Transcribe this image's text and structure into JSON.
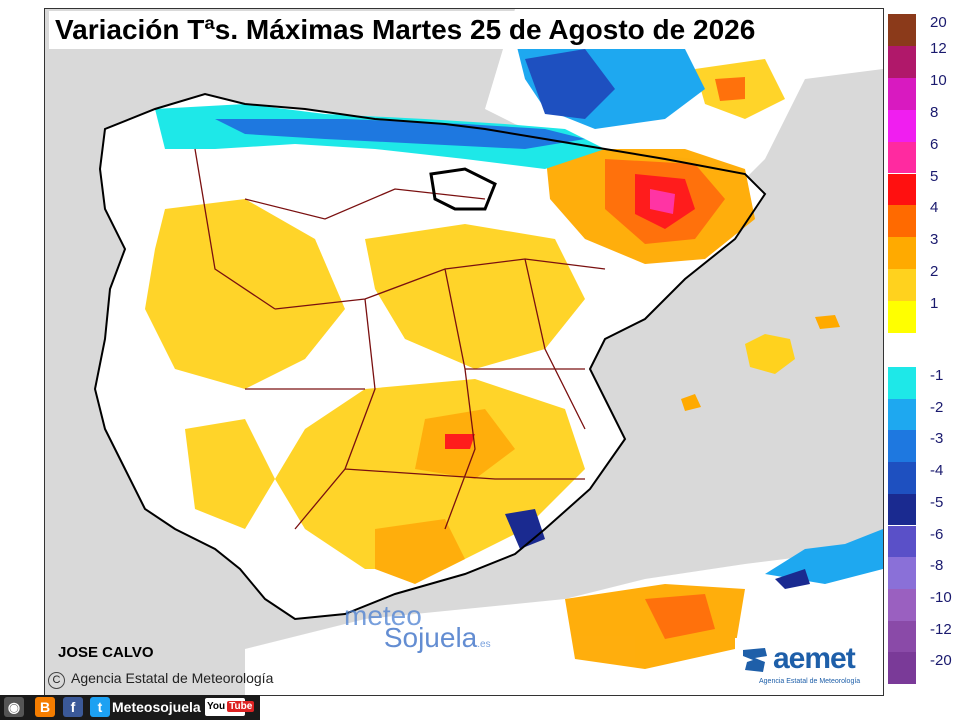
{
  "title": "Variación Tªs. Máximas Martes 25 de Agosto de 2026",
  "author": "JOSE CALVO",
  "copyright_text": "Agencia Estatal de Meteorología",
  "copyright_symbol": "C",
  "watermark": {
    "part1": "meteo",
    "part2": "Sojuela",
    "part3": ".es"
  },
  "aemet": {
    "name": "aemet",
    "sub": "Agencia Estatal de Meteorología"
  },
  "social": {
    "handle": "Meteosojuela",
    "youtube": "You",
    "youtube_red": "Tube",
    "icons": [
      "camera-icon",
      "blogger-icon",
      "facebook-icon",
      "twitter-icon",
      "youtube-icon"
    ]
  },
  "legend": {
    "positive": [
      {
        "label": "20",
        "color": "#8b3a1a"
      },
      {
        "label": "12",
        "color": "#b0186a"
      },
      {
        "label": "10",
        "color": "#d81ac0"
      },
      {
        "label": "8",
        "color": "#f01ef0"
      },
      {
        "label": "6",
        "color": "#ff2aa0"
      },
      {
        "label": "5",
        "color": "#ff1010"
      },
      {
        "label": "4",
        "color": "#ff6a00"
      },
      {
        "label": "3",
        "color": "#ffaa00"
      },
      {
        "label": "2",
        "color": "#ffd21e"
      },
      {
        "label": "1",
        "color": "#ffff00"
      }
    ],
    "negative": [
      {
        "label": "-1",
        "color": "#1ee8e8"
      },
      {
        "label": "-2",
        "color": "#1ea8f0"
      },
      {
        "label": "-3",
        "color": "#1e78e0"
      },
      {
        "label": "-4",
        "color": "#1e50c0"
      },
      {
        "label": "-5",
        "color": "#1a2a90"
      },
      {
        "label": "-6",
        "color": "#5a50c8"
      },
      {
        "label": "-8",
        "color": "#8a70d8"
      },
      {
        "label": "-10",
        "color": "#9a60c0"
      },
      {
        "label": "-12",
        "color": "#8a4aa8"
      },
      {
        "label": "-20",
        "color": "#7a3a98"
      }
    ]
  },
  "colors": {
    "sea": "#d9d9d9",
    "land": "#ffffff",
    "borders": "#7a1010"
  }
}
